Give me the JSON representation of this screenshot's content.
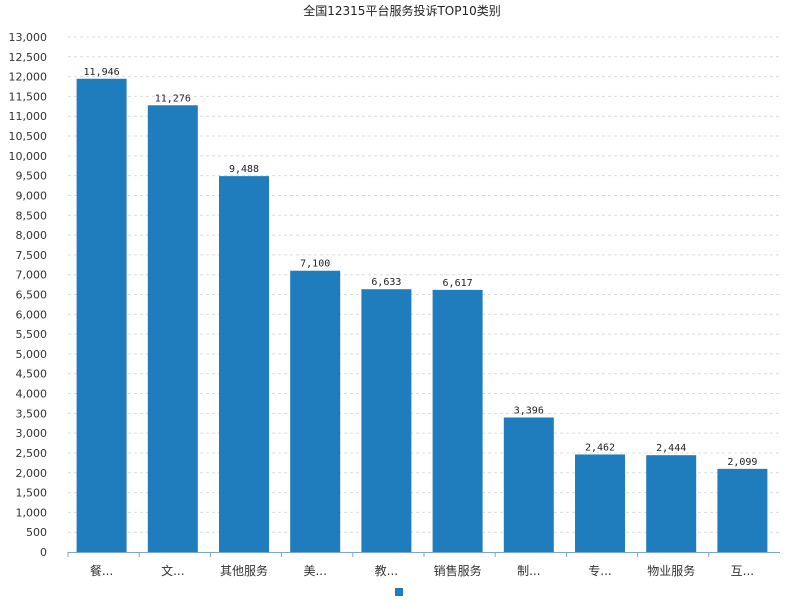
{
  "chart_data": {
    "type": "bar",
    "title": "全国12315平台服务投诉TOP10类别",
    "categories": [
      "餐...",
      "文...",
      "其他服务",
      "美...",
      "教...",
      "销售服务",
      "制...",
      "专...",
      "物业服务",
      "互..."
    ],
    "values": [
      11946,
      11276,
      9488,
      7100,
      6633,
      6617,
      3396,
      2462,
      2444,
      2099
    ],
    "value_labels": [
      "11,946",
      "11,276",
      "9,488",
      "7,100",
      "6,633",
      "6,617",
      "3,396",
      "2,462",
      "2,444",
      "2,099"
    ],
    "yticks": [
      "0",
      "500",
      "1,000",
      "1,500",
      "2,000",
      "2,500",
      "3,000",
      "3,500",
      "4,000",
      "4,500",
      "5,000",
      "5,500",
      "6,000",
      "6,500",
      "7,000",
      "7,500",
      "8,000",
      "8,500",
      "9,000",
      "9,500",
      "10,000",
      "10,500",
      "11,000",
      "11,500",
      "12,000",
      "12,500",
      "13,000"
    ],
    "ylim": [
      0,
      13000
    ],
    "ytick_step": 500,
    "grid": true,
    "legend": "bottom-center",
    "bar_color": "#1f7dbd"
  }
}
